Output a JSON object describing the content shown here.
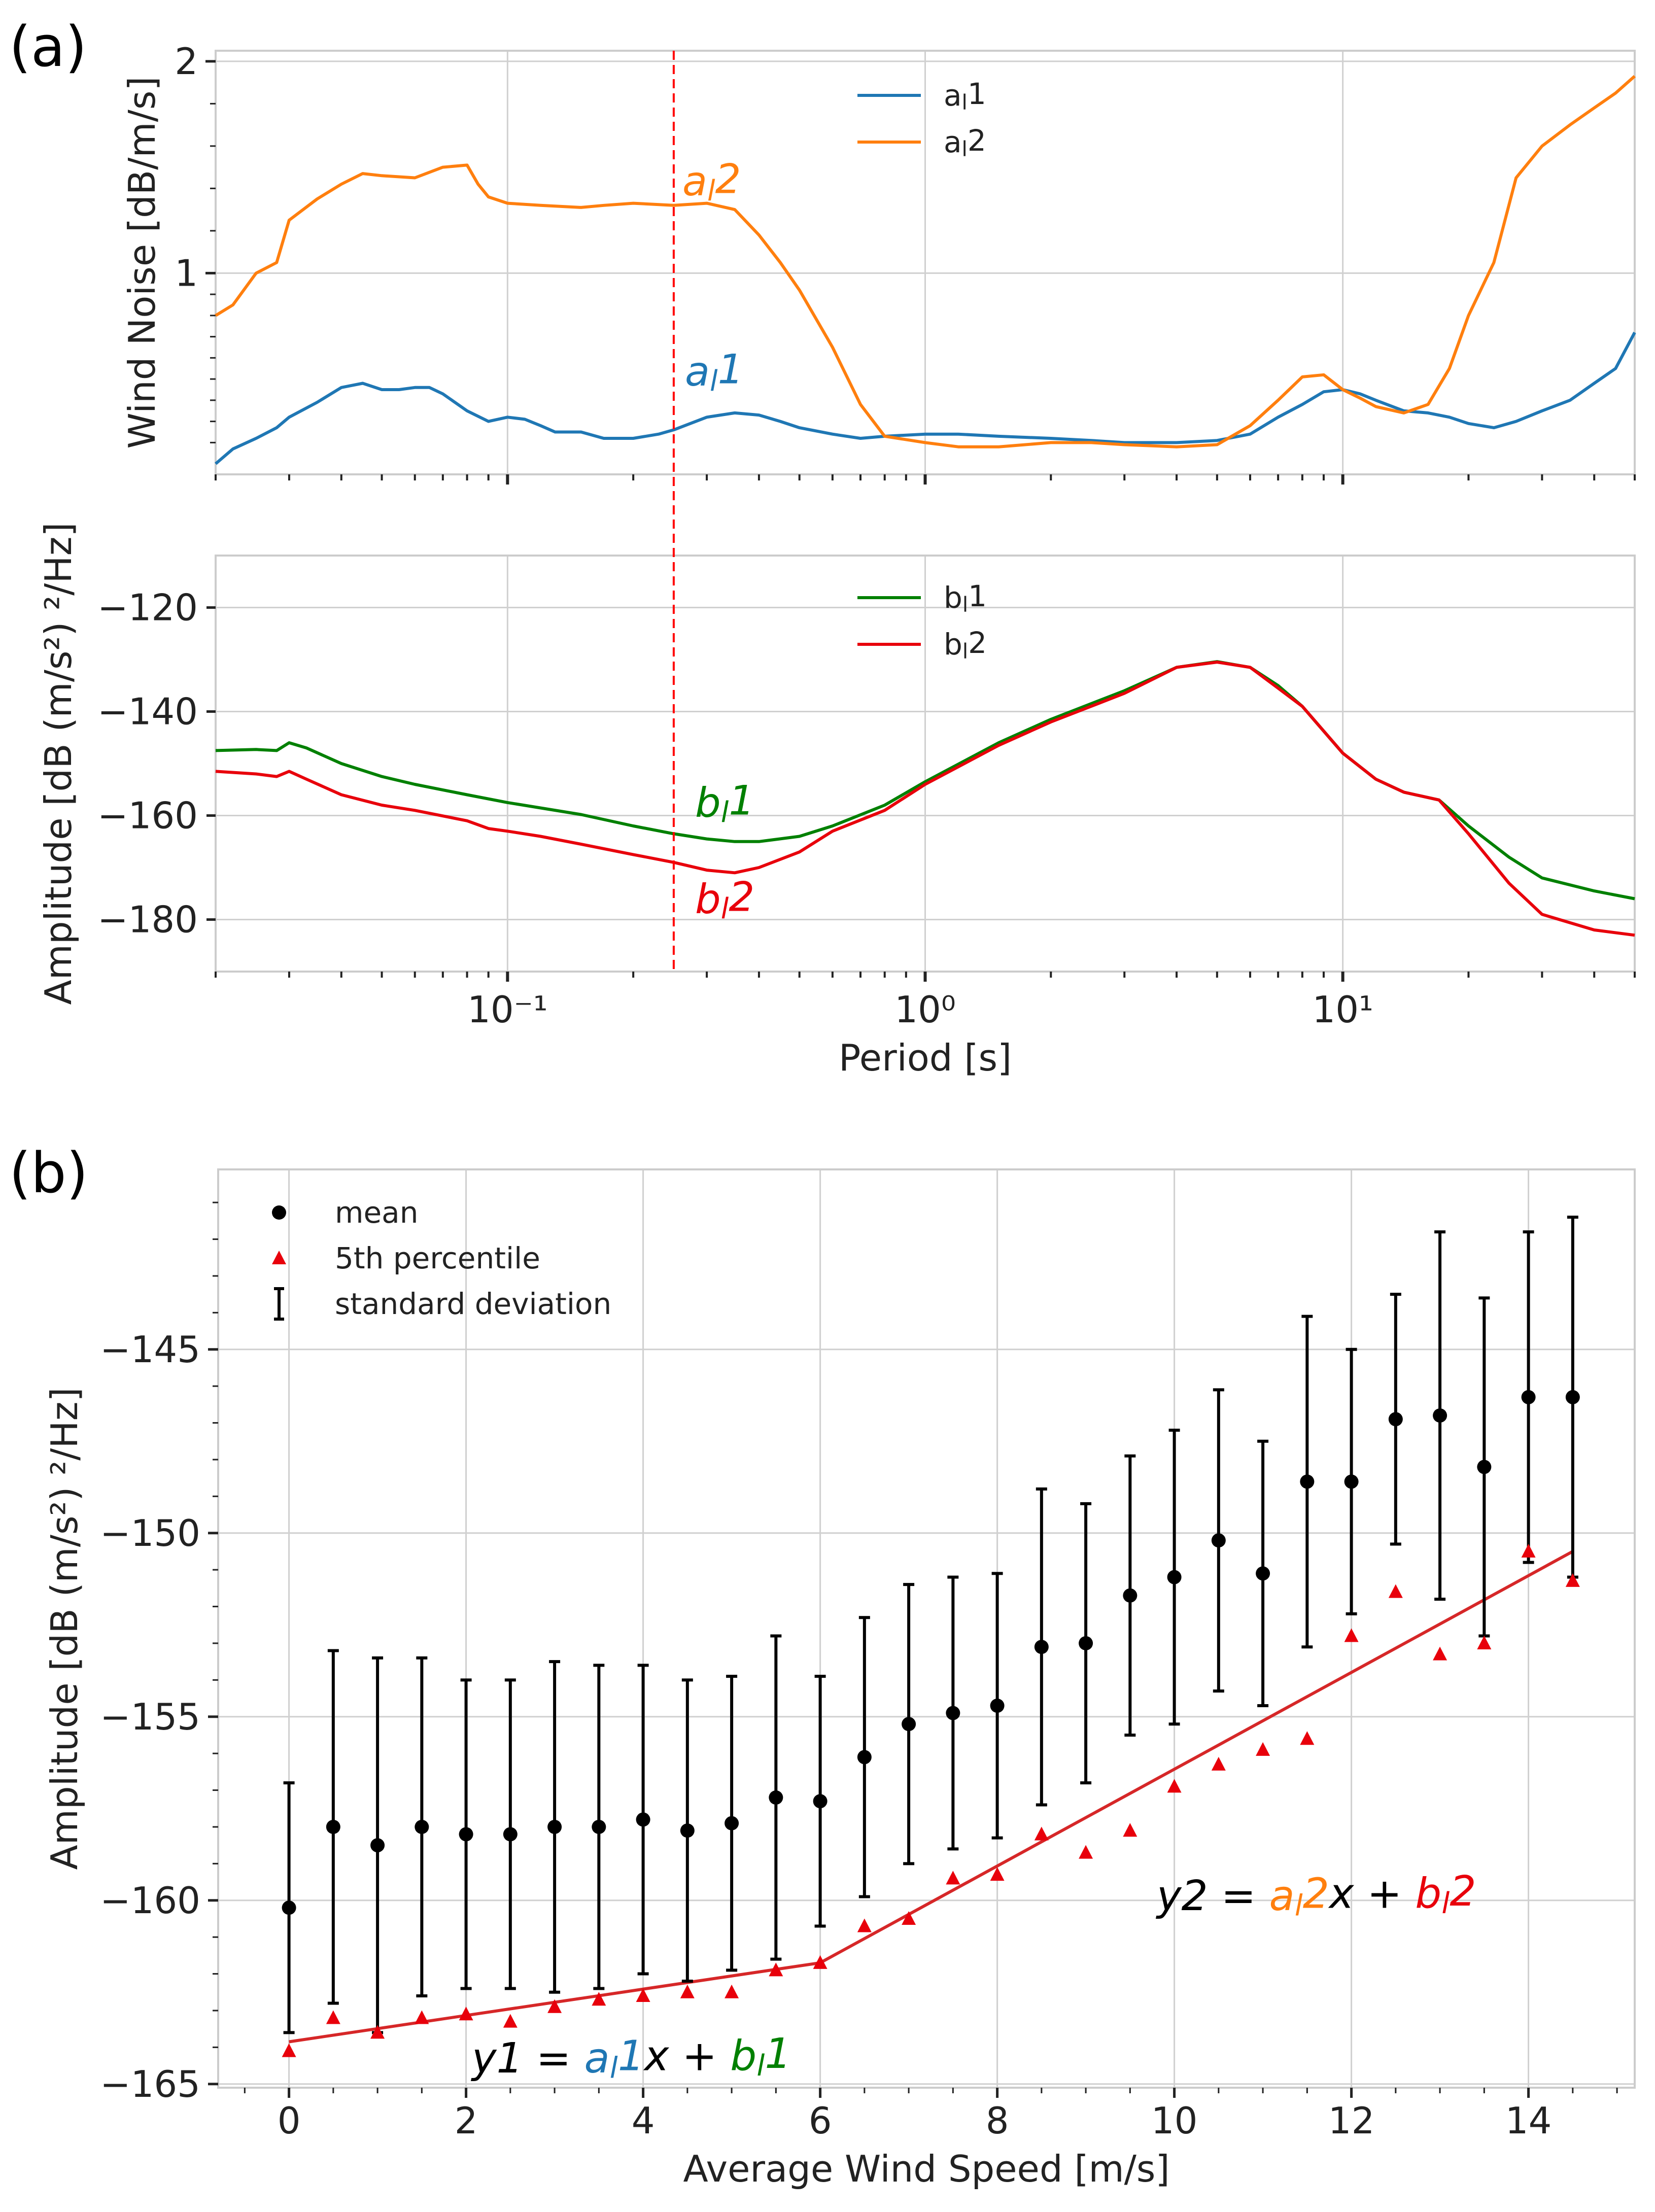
{
  "colors": {
    "a1": "#1f77b4",
    "a2": "#ff7f0e",
    "b1": "#008000",
    "b2": "#e8000b",
    "mean": "#000000",
    "p5": "#e8000b",
    "fit": "#d62728",
    "cutoff": "#ff0000"
  },
  "panel_a": {
    "label": "(a)",
    "top": {
      "ylabel": "Wind Noise [dB/m/s]",
      "yticks": [
        "1",
        "2"
      ],
      "legend": [
        {
          "key": "a1",
          "text": "aₗ 1"
        },
        {
          "key": "a2",
          "text": "aₗ 2"
        }
      ],
      "curve_labels": {
        "a1": "aₗ 1",
        "a2": "aₗ 2"
      }
    },
    "bottom": {
      "ylabel": "Amplitude [dB (m/s²) ²/Hz]",
      "yticks": [
        "−120",
        "−140",
        "−160",
        "−180"
      ],
      "legend": [
        {
          "key": "b1",
          "text": "bₗ 1"
        },
        {
          "key": "b2",
          "text": "bₗ 2"
        }
      ],
      "curve_labels": {
        "b1": "bₗ 1",
        "b2": "bₗ 2"
      },
      "xlabel": "Period [s]",
      "xticks": [
        "10⁻¹",
        "10⁰",
        "10¹"
      ]
    }
  },
  "panel_b": {
    "label": "(b)",
    "xlabel": "Average Wind Speed [m/s]",
    "ylabel": "Amplitude [dB (m/s²) ²/Hz]",
    "xticks": [
      "0",
      "2",
      "4",
      "6",
      "8",
      "10",
      "12",
      "14"
    ],
    "yticks": [
      "−145",
      "−150",
      "−155",
      "−160",
      "−165"
    ],
    "legend": {
      "mean": "mean",
      "p5": "5th percentile",
      "sd": "standard deviation"
    },
    "eq1": {
      "lhs": "y1 =",
      "a": "aₗ 1",
      "x": "x +",
      "b": "bₗ 1"
    },
    "eq2": {
      "lhs": "y2 =",
      "a": "aₗ 2",
      "x": "x +",
      "b": "bₗ 2"
    }
  },
  "chart_data": [
    {
      "type": "line",
      "title": "",
      "xlabel": "",
      "ylabel": "Wind Noise [dB/m/s]",
      "xscale": "log",
      "xlim": [
        0.02,
        50
      ],
      "ylim": [
        0.05,
        2.05
      ],
      "vline": 0.25,
      "series": [
        {
          "name": "a_l1",
          "x": [
            0.02,
            0.022,
            0.025,
            0.028,
            0.03,
            0.035,
            0.04,
            0.045,
            0.05,
            0.055,
            0.06,
            0.065,
            0.07,
            0.08,
            0.09,
            0.1,
            0.11,
            0.12,
            0.13,
            0.15,
            0.17,
            0.2,
            0.23,
            0.25,
            0.3,
            0.35,
            0.4,
            0.45,
            0.5,
            0.6,
            0.7,
            0.8,
            1.0,
            1.2,
            1.5,
            2.0,
            2.5,
            3.0,
            4.0,
            5.0,
            6.0,
            7.0,
            8.0,
            9.0,
            10.0,
            11.0,
            12.0,
            14.0,
            16.0,
            18.0,
            20.0,
            23.0,
            26.0,
            30.0,
            35.0,
            40.0,
            45.0,
            50.0
          ],
          "y": [
            0.1,
            0.17,
            0.22,
            0.27,
            0.32,
            0.39,
            0.46,
            0.48,
            0.45,
            0.45,
            0.46,
            0.46,
            0.43,
            0.35,
            0.3,
            0.32,
            0.31,
            0.28,
            0.25,
            0.25,
            0.22,
            0.22,
            0.24,
            0.26,
            0.32,
            0.34,
            0.33,
            0.3,
            0.27,
            0.24,
            0.22,
            0.23,
            0.24,
            0.24,
            0.23,
            0.22,
            0.21,
            0.2,
            0.2,
            0.21,
            0.24,
            0.32,
            0.38,
            0.44,
            0.45,
            0.43,
            0.4,
            0.35,
            0.34,
            0.32,
            0.29,
            0.27,
            0.3,
            0.35,
            0.4,
            0.48,
            0.55,
            0.72
          ]
        },
        {
          "name": "a_l2",
          "x": [
            0.02,
            0.022,
            0.025,
            0.028,
            0.03,
            0.035,
            0.04,
            0.045,
            0.05,
            0.06,
            0.07,
            0.08,
            0.085,
            0.09,
            0.1,
            0.12,
            0.15,
            0.17,
            0.2,
            0.25,
            0.3,
            0.35,
            0.4,
            0.45,
            0.5,
            0.6,
            0.7,
            0.8,
            1.0,
            1.2,
            1.5,
            2.0,
            2.5,
            3.0,
            4.0,
            5.0,
            6.0,
            7.0,
            8.0,
            9.0,
            10.0,
            11.0,
            12.0,
            14.0,
            16.0,
            18.0,
            20.0,
            23.0,
            26.0,
            30.0,
            35.0,
            40.0,
            45.0,
            50.0
          ],
          "y": [
            0.8,
            0.85,
            1.0,
            1.05,
            1.25,
            1.35,
            1.42,
            1.47,
            1.46,
            1.45,
            1.5,
            1.51,
            1.42,
            1.36,
            1.33,
            1.32,
            1.31,
            1.32,
            1.33,
            1.32,
            1.33,
            1.3,
            1.18,
            1.05,
            0.92,
            0.65,
            0.38,
            0.23,
            0.2,
            0.18,
            0.18,
            0.2,
            0.2,
            0.19,
            0.18,
            0.19,
            0.28,
            0.4,
            0.51,
            0.52,
            0.45,
            0.41,
            0.37,
            0.34,
            0.38,
            0.55,
            0.8,
            1.05,
            1.45,
            1.6,
            1.7,
            1.78,
            1.85,
            1.93
          ]
        }
      ]
    },
    {
      "type": "line",
      "title": "",
      "xlabel": "Period [s]",
      "ylabel": "Amplitude [dB (m/s²) ²/Hz]",
      "xscale": "log",
      "xlim": [
        0.02,
        50
      ],
      "ylim": [
        -190,
        -110
      ],
      "vline": 0.25,
      "series": [
        {
          "name": "b_l1",
          "x": [
            0.02,
            0.025,
            0.028,
            0.03,
            0.033,
            0.04,
            0.05,
            0.06,
            0.08,
            0.1,
            0.15,
            0.2,
            0.25,
            0.3,
            0.35,
            0.4,
            0.5,
            0.6,
            0.8,
            1.0,
            1.5,
            2.0,
            3.0,
            4.0,
            5.0,
            6.0,
            7.0,
            8.0,
            10.0,
            12.0,
            14.0,
            17.0,
            20.0,
            25.0,
            30.0,
            40.0,
            50.0
          ],
          "y": [
            -147.5,
            -147.3,
            -147.5,
            -146,
            -147,
            -150,
            -152.5,
            -154,
            -156,
            -157.5,
            -159.8,
            -162,
            -163.5,
            -164.5,
            -165,
            -165,
            -164,
            -162,
            -158,
            -153.5,
            -146,
            -141.5,
            -136,
            -131.5,
            -130.4,
            -131.5,
            -135,
            -139,
            -148,
            -153,
            -155.5,
            -157,
            -162,
            -168,
            -172,
            -174.5,
            -176
          ]
        },
        {
          "name": "b_l2",
          "x": [
            0.02,
            0.025,
            0.028,
            0.03,
            0.033,
            0.04,
            0.05,
            0.06,
            0.08,
            0.09,
            0.1,
            0.12,
            0.15,
            0.2,
            0.25,
            0.3,
            0.35,
            0.4,
            0.5,
            0.6,
            0.8,
            1.0,
            1.5,
            2.0,
            3.0,
            4.0,
            5.0,
            6.0,
            7.0,
            8.0,
            10.0,
            12.0,
            14.0,
            17.0,
            20.0,
            25.0,
            30.0,
            40.0,
            50.0
          ],
          "y": [
            -151.5,
            -152,
            -152.5,
            -151.5,
            -153,
            -156,
            -158,
            -159,
            -161,
            -162.5,
            -163,
            -164,
            -165.5,
            -167.5,
            -169,
            -170.5,
            -171,
            -170,
            -167,
            -163,
            -159,
            -154,
            -146.5,
            -142,
            -136.5,
            -131.5,
            -130.5,
            -131.5,
            -135.5,
            -139,
            -148,
            -153,
            -155.5,
            -157,
            -163.5,
            -173,
            -179,
            -182,
            -183
          ]
        }
      ]
    },
    {
      "type": "scatter",
      "title": "",
      "xlabel": "Average Wind Speed [m/s]",
      "ylabel": "Amplitude [dB (m/s²) ²/Hz]",
      "xlim": [
        -0.8,
        15.2
      ],
      "ylim": [
        -165.1,
        -140.1
      ],
      "x": [
        0,
        0.5,
        1,
        1.5,
        2,
        2.5,
        3,
        3.5,
        4,
        4.5,
        5,
        5.5,
        6,
        6.5,
        7,
        7.5,
        8,
        8.5,
        9,
        9.5,
        10,
        10.5,
        11,
        11.5,
        12,
        12.5,
        13,
        13.5,
        14,
        14.5
      ],
      "series": [
        {
          "name": "mean",
          "values": [
            -160.2,
            -158.0,
            -158.5,
            -158.0,
            -158.2,
            -158.2,
            -158.0,
            -158.0,
            -157.8,
            -158.1,
            -157.9,
            -157.2,
            -157.3,
            -156.1,
            -155.2,
            -154.9,
            -154.7,
            -153.1,
            -153.0,
            -151.7,
            -151.2,
            -150.2,
            -151.1,
            -148.6,
            -148.6,
            -146.9,
            -146.8,
            -148.2,
            -146.3,
            -146.3
          ]
        },
        {
          "name": "standard deviation",
          "values": [
            3.4,
            4.8,
            5.1,
            4.6,
            4.2,
            4.2,
            4.5,
            4.4,
            4.2,
            4.1,
            4.0,
            4.4,
            3.4,
            3.8,
            3.8,
            3.7,
            3.6,
            4.3,
            3.8,
            3.8,
            4.0,
            4.1,
            3.6,
            4.5,
            3.6,
            3.4,
            5.0,
            4.6,
            4.5,
            4.9
          ]
        },
        {
          "name": "5th percentile",
          "values": [
            -164.1,
            -163.2,
            -163.6,
            -163.2,
            -163.1,
            -163.3,
            -162.9,
            -162.7,
            -162.6,
            -162.5,
            -162.5,
            -161.9,
            -161.7,
            -160.7,
            -160.5,
            -159.4,
            -159.3,
            -158.2,
            -158.7,
            -158.1,
            -156.9,
            -156.3,
            -155.9,
            -155.6,
            -152.8,
            -151.6,
            -153.3,
            -153.0,
            -150.5,
            -151.3
          ]
        },
        {
          "name": "fit",
          "x": [
            0,
            6,
            14.5
          ],
          "values": [
            -163.85,
            -161.7,
            -150.5
          ]
        }
      ]
    }
  ]
}
